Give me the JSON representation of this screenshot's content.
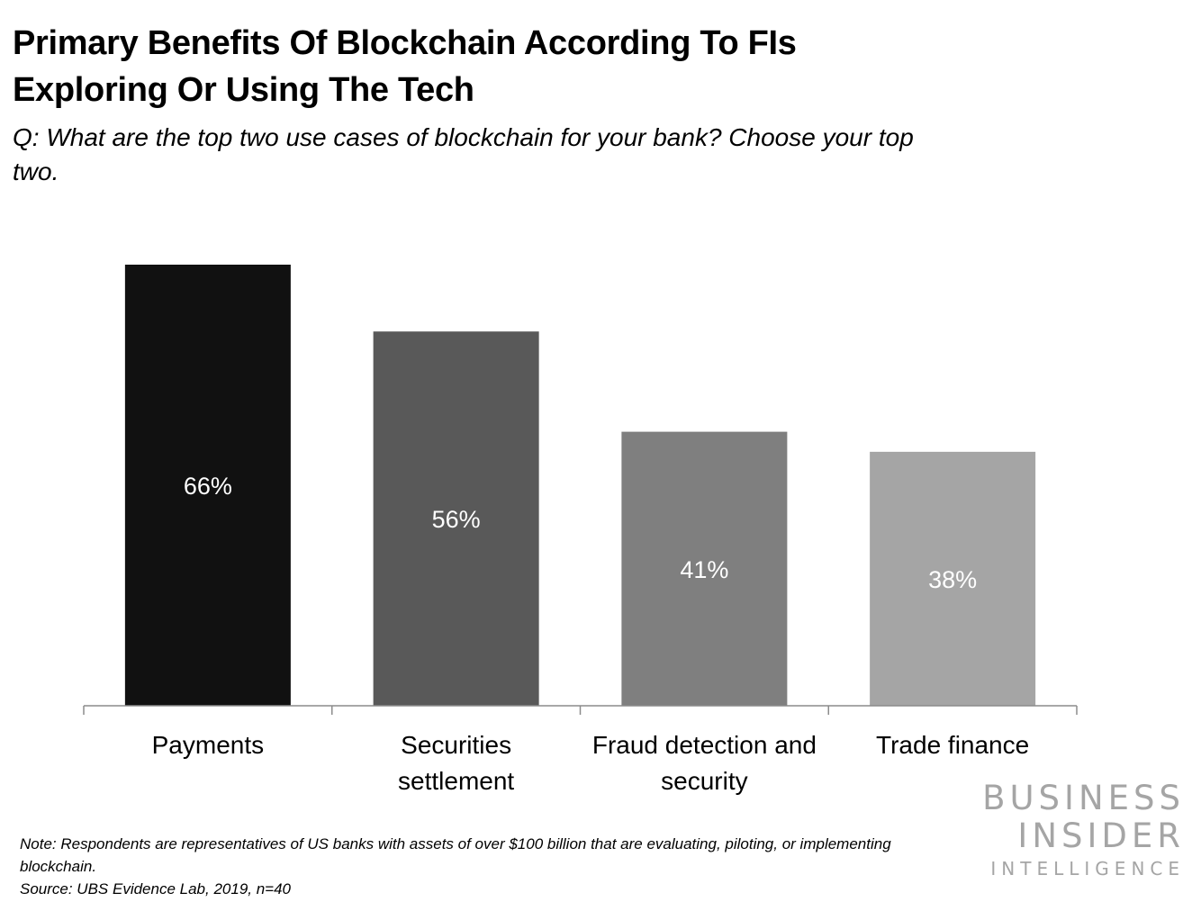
{
  "chart_data": {
    "type": "bar",
    "title": "Primary Benefits Of Blockchain According To FIs Exploring Or Using The Tech",
    "subtitle": "Q: What are the top two use cases of blockchain for your bank? Choose your top two.",
    "categories": [
      [
        "Payments"
      ],
      [
        "Securities",
        "settlement"
      ],
      [
        "Fraud detection and",
        "security"
      ],
      [
        "Trade finance"
      ]
    ],
    "values": [
      66,
      56,
      41,
      38
    ],
    "value_labels": [
      "66%",
      "56%",
      "41%",
      "38%"
    ],
    "colors": [
      "#111111",
      "#595959",
      "#7f7f7f",
      "#a5a5a5"
    ],
    "ylim": [
      0,
      66
    ],
    "grid": false,
    "legend": "none"
  },
  "footnote": {
    "note": "Note: Respondents are representatives of US banks with assets of over $100 billion that are evaluating, piloting, or implementing blockchain.",
    "source": "Source: UBS Evidence Lab, 2019, n=40"
  },
  "logo": {
    "line1": "BUSINESS",
    "line2": "INSIDER",
    "line3": "INTELLIGENCE"
  }
}
